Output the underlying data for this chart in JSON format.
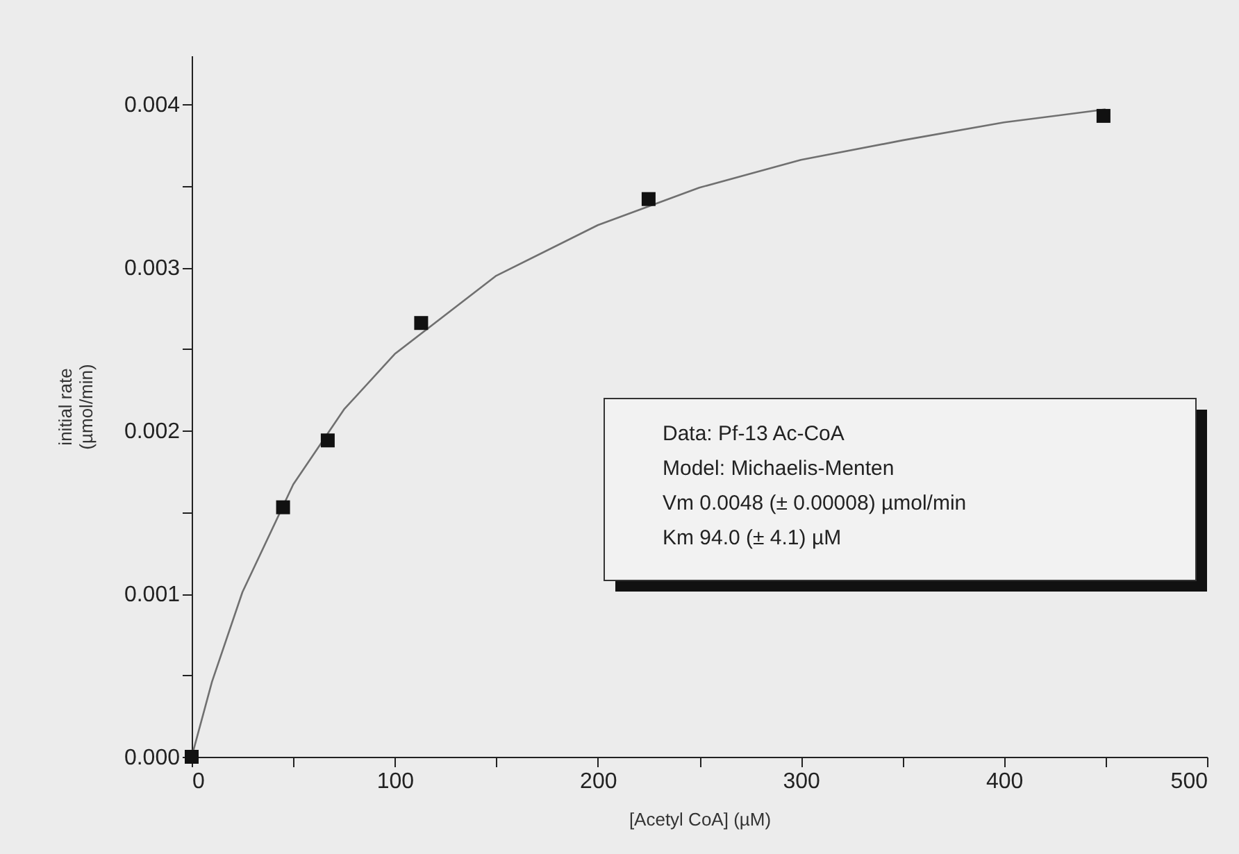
{
  "chart_data": {
    "type": "scatter",
    "xlabel": "[Acetyl CoA] (µM)",
    "ylabel": "initial rate\n(µmol/min)",
    "xlim": [
      0,
      500
    ],
    "ylim": [
      0,
      0.0043
    ],
    "xticks": [
      0,
      {
        "value": 50,
        "label": null
      },
      100,
      {
        "value": 150,
        "label": null
      },
      200,
      {
        "value": 250,
        "label": null
      },
      300,
      {
        "value": 350,
        "label": null
      },
      400,
      {
        "value": 450,
        "label": null
      },
      500
    ],
    "yticks": [
      {
        "value": 0,
        "label": "0.000"
      },
      {
        "value": 0.0005,
        "label": null
      },
      {
        "value": 0.001,
        "label": "0.001"
      },
      {
        "value": 0.0015,
        "label": null
      },
      {
        "value": 0.002,
        "label": "0.002"
      },
      {
        "value": 0.0025,
        "label": null
      },
      {
        "value": 0.003,
        "label": "0.003"
      },
      {
        "value": 0.0035,
        "label": null
      },
      {
        "value": 0.004,
        "label": "0.004"
      }
    ],
    "series": [
      {
        "type": "line",
        "color": "#707070",
        "marker": "none",
        "line_style": "solid",
        "x": [
          0,
          10,
          25,
          50,
          75,
          100,
          150,
          200,
          250,
          300,
          350,
          400,
          450
        ],
        "values": [
          0,
          0.00046,
          0.00101,
          0.00167,
          0.00213,
          0.00247,
          0.00295,
          0.00326,
          0.00349,
          0.00366,
          0.00378,
          0.00389,
          0.00397
        ]
      },
      {
        "type": "scatter",
        "color": "#111111",
        "marker": "square",
        "x": [
          0,
          45,
          67,
          113,
          225,
          449
        ],
        "values": [
          0,
          0.00153,
          0.00194,
          0.00266,
          0.00342,
          0.00393
        ]
      }
    ],
    "annotations": [
      "Data: Pf-13 Ac-CoA",
      "Model: Michaelis-Menten",
      "Vm 0.0048 (± 0.00008) µmol/min",
      "Km 94.0 (± 4.1) µM"
    ]
  }
}
